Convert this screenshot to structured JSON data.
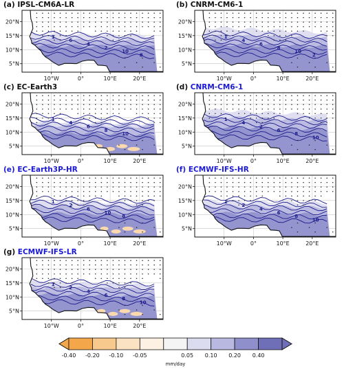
{
  "panels": [
    {
      "id": "a",
      "title": "(a) IPSL-CM6A-LR",
      "title_color": "#111111",
      "contour_labels": [
        "1",
        "6",
        "4",
        "2",
        "10",
        "8"
      ]
    },
    {
      "id": "b",
      "title": "(b) CNRM-CM6-1",
      "title_color": "#111111",
      "contour_labels": [
        "1",
        "4",
        "6",
        "8",
        "10",
        "2"
      ]
    },
    {
      "id": "c",
      "title": "(c) EC-Earth3",
      "title_color": "#111111",
      "contour_labels": [
        "1",
        "4",
        "6",
        "8",
        "10"
      ]
    },
    {
      "id": "d",
      "title": "(d) CNRM-CM6-1",
      "title_color": "#1a1ad6",
      "contour_labels": [
        "1",
        "4",
        "2",
        "6",
        "8",
        "10"
      ]
    },
    {
      "id": "e",
      "title": "(e) EC-Earth3P-HR",
      "title_color": "#1a1ad6",
      "contour_labels": [
        "1",
        "2",
        "6",
        "10",
        "8"
      ]
    },
    {
      "id": "f",
      "title": "(f) ECMWF-IFS-HR",
      "title_color": "#1a1ad6",
      "contour_labels": [
        "1",
        "2",
        "4",
        "6",
        "8",
        "10"
      ]
    },
    {
      "id": "g",
      "title": "ECMWF-IFS-LR",
      "title_prefix": "(g)",
      "title_color": "#1a1ad6",
      "contour_labels": [
        "1",
        "2",
        "4",
        "6",
        "8",
        "10"
      ]
    }
  ],
  "lat_ticks": [
    "20°N",
    "15°N",
    "10°N",
    "5°N"
  ],
  "lon_ticks": [
    "10°W",
    "0°",
    "10°E",
    "20°E"
  ],
  "colorbar": {
    "unit": "mm/day",
    "tick_labels": [
      "-0.40",
      "-0.20",
      "-0.10",
      "-0.05",
      "0.05",
      "0.10",
      "0.20",
      "0.40"
    ],
    "colors": [
      "#f4a64a",
      "#f8c98c",
      "#fbe2c2",
      "#fdf1e4",
      "#f4f4f4",
      "#dcdcf0",
      "#b8b8e0",
      "#8f8fcc",
      "#6f6fb8"
    ]
  },
  "colors": {
    "wet_fill": "#9a9ad6",
    "contour": "#1a1a8c",
    "land": "#ffffff",
    "ocean": "#ffffff",
    "grid": "#c8c8c8"
  }
}
